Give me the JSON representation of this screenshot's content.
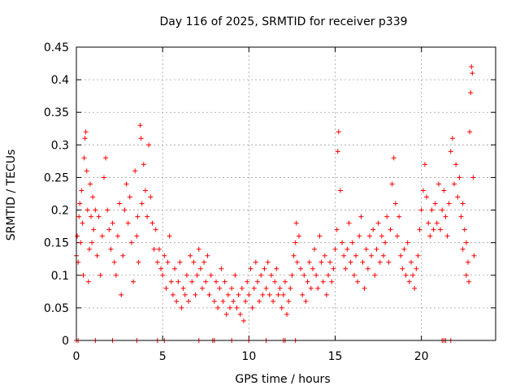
{
  "chart_data": {
    "type": "scatter",
    "title": "Day 116 of 2025, SRMTID for receiver p339",
    "xlabel": "GPS time / hours",
    "ylabel": "SRMTID / TECUs",
    "xlim": [
      0,
      24.3
    ],
    "ylim": [
      0,
      0.45
    ],
    "grid": true,
    "marker": "plus",
    "series_color": "#ff0000",
    "x_ticks": [
      {
        "value": 0,
        "label": "0"
      },
      {
        "value": 5,
        "label": "5"
      },
      {
        "value": 10,
        "label": "10"
      },
      {
        "value": 15,
        "label": "15"
      },
      {
        "value": 20,
        "label": "20"
      }
    ],
    "y_ticks": [
      {
        "value": 0,
        "label": "0"
      },
      {
        "value": 0.05,
        "label": "0.05"
      },
      {
        "value": 0.1,
        "label": "0.1"
      },
      {
        "value": 0.15,
        "label": "0.15"
      },
      {
        "value": 0.2,
        "label": "0.2"
      },
      {
        "value": 0.25,
        "label": "0.25"
      },
      {
        "value": 0.3,
        "label": "0.3"
      },
      {
        "value": 0.35,
        "label": "0.35"
      },
      {
        "value": 0.4,
        "label": "0.4"
      },
      {
        "value": 0.45,
        "label": "0.45"
      }
    ],
    "series": [
      {
        "name": "SRMTID",
        "points": [
          [
            0.0,
            0.13
          ],
          [
            0.05,
            0.16
          ],
          [
            0.1,
            0.12
          ],
          [
            0.15,
            0.19
          ],
          [
            0.2,
            0.21
          ],
          [
            0.25,
            0.15
          ],
          [
            0.3,
            0.23
          ],
          [
            0.35,
            0.18
          ],
          [
            0.4,
            0.1
          ],
          [
            0.45,
            0.28
          ],
          [
            0.5,
            0.31
          ],
          [
            0.55,
            0.32
          ],
          [
            0.6,
            0.26
          ],
          [
            0.65,
            0.2
          ],
          [
            0.7,
            0.09
          ],
          [
            0.75,
            0.14
          ],
          [
            0.8,
            0.24
          ],
          [
            0.85,
            0.19
          ],
          [
            0.9,
            0.15
          ],
          [
            0.95,
            0.22
          ],
          [
            1.0,
            0.17
          ],
          [
            1.1,
            0.2
          ],
          [
            1.2,
            0.13
          ],
          [
            1.3,
            0.19
          ],
          [
            1.4,
            0.1
          ],
          [
            1.5,
            0.16
          ],
          [
            1.6,
            0.25
          ],
          [
            1.7,
            0.28
          ],
          [
            1.8,
            0.2
          ],
          [
            1.9,
            0.17
          ],
          [
            2.0,
            0.14
          ],
          [
            2.1,
            0.18
          ],
          [
            2.2,
            0.12
          ],
          [
            2.3,
            0.1
          ],
          [
            2.4,
            0.16
          ],
          [
            2.5,
            0.21
          ],
          [
            2.6,
            0.07
          ],
          [
            2.7,
            0.13
          ],
          [
            2.8,
            0.2
          ],
          [
            2.9,
            0.24
          ],
          [
            3.0,
            0.18
          ],
          [
            3.1,
            0.22
          ],
          [
            3.2,
            0.15
          ],
          [
            3.3,
            0.09
          ],
          [
            3.4,
            0.26
          ],
          [
            3.5,
            0.16
          ],
          [
            3.55,
            0.19
          ],
          [
            3.6,
            0.12
          ],
          [
            3.7,
            0.33
          ],
          [
            3.75,
            0.31
          ],
          [
            3.8,
            0.21
          ],
          [
            3.9,
            0.27
          ],
          [
            4.0,
            0.23
          ],
          [
            4.1,
            0.19
          ],
          [
            4.2,
            0.3
          ],
          [
            4.3,
            0.22
          ],
          [
            4.4,
            0.18
          ],
          [
            4.5,
            0.14
          ],
          [
            4.6,
            0.17
          ],
          [
            4.7,
            0.12
          ],
          [
            4.8,
            0.14
          ],
          [
            4.9,
            0.11
          ],
          [
            5.0,
            0.1
          ],
          [
            5.1,
            0.13
          ],
          [
            5.2,
            0.08
          ],
          [
            5.3,
            0.12
          ],
          [
            5.4,
            0.16
          ],
          [
            5.5,
            0.09
          ],
          [
            5.6,
            0.07
          ],
          [
            5.7,
            0.11
          ],
          [
            5.8,
            0.06
          ],
          [
            5.9,
            0.09
          ],
          [
            6.0,
            0.12
          ],
          [
            6.1,
            0.05
          ],
          [
            6.2,
            0.08
          ],
          [
            6.3,
            0.07
          ],
          [
            6.4,
            0.1
          ],
          [
            6.5,
            0.06
          ],
          [
            6.6,
            0.13
          ],
          [
            6.7,
            0.09
          ],
          [
            6.8,
            0.12
          ],
          [
            6.9,
            0.07
          ],
          [
            7.0,
            0.1
          ],
          [
            7.1,
            0.14
          ],
          [
            7.2,
            0.11
          ],
          [
            7.3,
            0.08
          ],
          [
            7.4,
            0.12
          ],
          [
            7.5,
            0.09
          ],
          [
            7.6,
            0.13
          ],
          [
            7.7,
            0.07
          ],
          [
            7.8,
            0.1
          ],
          [
            8.0,
            0.06
          ],
          [
            8.1,
            0.09
          ],
          [
            8.2,
            0.05
          ],
          [
            8.3,
            0.08
          ],
          [
            8.4,
            0.11
          ],
          [
            8.5,
            0.06
          ],
          [
            8.6,
            0.09
          ],
          [
            8.7,
            0.04
          ],
          [
            8.8,
            0.07
          ],
          [
            8.9,
            0.05
          ],
          [
            9.0,
            0.08
          ],
          [
            9.1,
            0.06
          ],
          [
            9.2,
            0.1
          ],
          [
            9.3,
            0.05
          ],
          [
            9.4,
            0.07
          ],
          [
            9.5,
            0.04
          ],
          [
            9.6,
            0.08
          ],
          [
            9.7,
            0.03
          ],
          [
            9.8,
            0.06
          ],
          [
            9.9,
            0.09
          ],
          [
            10.0,
            0.07
          ],
          [
            10.1,
            0.11
          ],
          [
            10.2,
            0.05
          ],
          [
            10.3,
            0.08
          ],
          [
            10.4,
            0.12
          ],
          [
            10.5,
            0.09
          ],
          [
            10.6,
            0.06
          ],
          [
            10.7,
            0.1
          ],
          [
            10.8,
            0.07
          ],
          [
            10.9,
            0.11
          ],
          [
            11.0,
            0.08
          ],
          [
            11.1,
            0.12
          ],
          [
            11.2,
            0.07
          ],
          [
            11.3,
            0.1
          ],
          [
            11.4,
            0.06
          ],
          [
            11.5,
            0.09
          ],
          [
            11.6,
            0.11
          ],
          [
            11.7,
            0.07
          ],
          [
            11.8,
            0.08
          ],
          [
            11.9,
            0.05
          ],
          [
            12.0,
            0.07
          ],
          [
            12.1,
            0.09
          ],
          [
            12.2,
            0.04
          ],
          [
            12.3,
            0.06
          ],
          [
            12.4,
            0.08
          ],
          [
            12.5,
            0.1
          ],
          [
            12.6,
            0.13
          ],
          [
            12.7,
            0.15
          ],
          [
            12.75,
            0.18
          ],
          [
            12.8,
            0.12
          ],
          [
            12.9,
            0.16
          ],
          [
            13.0,
            0.11
          ],
          [
            13.1,
            0.07
          ],
          [
            13.2,
            0.1
          ],
          [
            13.3,
            0.06
          ],
          [
            13.4,
            0.09
          ],
          [
            13.5,
            0.12
          ],
          [
            13.6,
            0.08
          ],
          [
            13.7,
            0.11
          ],
          [
            13.8,
            0.14
          ],
          [
            13.9,
            0.1
          ],
          [
            14.0,
            0.08
          ],
          [
            14.1,
            0.16
          ],
          [
            14.2,
            0.12
          ],
          [
            14.3,
            0.09
          ],
          [
            14.4,
            0.13
          ],
          [
            14.5,
            0.07
          ],
          [
            14.6,
            0.1
          ],
          [
            14.7,
            0.12
          ],
          [
            14.8,
            0.09
          ],
          [
            14.9,
            0.11
          ],
          [
            15.0,
            0.14
          ],
          [
            15.1,
            0.17
          ],
          [
            15.15,
            0.29
          ],
          [
            15.2,
            0.32
          ],
          [
            15.3,
            0.23
          ],
          [
            15.4,
            0.15
          ],
          [
            15.5,
            0.13
          ],
          [
            15.6,
            0.11
          ],
          [
            15.7,
            0.14
          ],
          [
            15.8,
            0.18
          ],
          [
            15.9,
            0.12
          ],
          [
            16.0,
            0.15
          ],
          [
            16.1,
            0.1
          ],
          [
            16.2,
            0.13
          ],
          [
            16.3,
            0.09
          ],
          [
            16.4,
            0.16
          ],
          [
            16.5,
            0.19
          ],
          [
            16.6,
            0.12
          ],
          [
            16.7,
            0.08
          ],
          [
            16.8,
            0.14
          ],
          [
            16.9,
            0.11
          ],
          [
            17.0,
            0.16
          ],
          [
            17.1,
            0.13
          ],
          [
            17.2,
            0.17
          ],
          [
            17.3,
            0.1
          ],
          [
            17.4,
            0.14
          ],
          [
            17.5,
            0.18
          ],
          [
            17.6,
            0.12
          ],
          [
            17.7,
            0.16
          ],
          [
            17.8,
            0.13
          ],
          [
            17.9,
            0.15
          ],
          [
            18.0,
            0.19
          ],
          [
            18.1,
            0.12
          ],
          [
            18.2,
            0.17
          ],
          [
            18.3,
            0.24
          ],
          [
            18.4,
            0.28
          ],
          [
            18.5,
            0.21
          ],
          [
            18.6,
            0.16
          ],
          [
            18.7,
            0.19
          ],
          [
            18.8,
            0.13
          ],
          [
            18.9,
            0.11
          ],
          [
            19.0,
            0.14
          ],
          [
            19.1,
            0.1
          ],
          [
            19.2,
            0.15
          ],
          [
            19.3,
            0.09
          ],
          [
            19.4,
            0.12
          ],
          [
            19.5,
            0.1
          ],
          [
            19.6,
            0.08
          ],
          [
            19.7,
            0.11
          ],
          [
            19.8,
            0.13
          ],
          [
            19.9,
            0.17
          ],
          [
            20.0,
            0.2
          ],
          [
            20.1,
            0.23
          ],
          [
            20.2,
            0.27
          ],
          [
            20.3,
            0.22
          ],
          [
            20.4,
            0.18
          ],
          [
            20.5,
            0.16
          ],
          [
            20.6,
            0.2
          ],
          [
            20.7,
            0.17
          ],
          [
            20.8,
            0.21
          ],
          [
            20.9,
            0.18
          ],
          [
            21.0,
            0.24
          ],
          [
            21.1,
            0.17
          ],
          [
            21.2,
            0.2
          ],
          [
            21.3,
            0.23
          ],
          [
            21.4,
            0.19
          ],
          [
            21.5,
            0.16
          ],
          [
            21.6,
            0.21
          ],
          [
            21.7,
            0.29
          ],
          [
            21.8,
            0.31
          ],
          [
            21.9,
            0.24
          ],
          [
            22.0,
            0.27
          ],
          [
            22.1,
            0.22
          ],
          [
            22.2,
            0.25
          ],
          [
            22.3,
            0.19
          ],
          [
            22.4,
            0.21
          ],
          [
            22.5,
            0.17
          ],
          [
            22.6,
            0.15
          ],
          [
            22.7,
            0.12
          ],
          [
            22.75,
            0.09
          ],
          [
            22.8,
            0.32
          ],
          [
            22.85,
            0.38
          ],
          [
            22.9,
            0.42
          ],
          [
            22.95,
            0.41
          ],
          [
            23.0,
            0.25
          ],
          [
            23.05,
            0.13
          ],
          [
            22.6,
            0.1
          ],
          [
            22.4,
            0.14
          ],
          [
            0.0,
            0.0
          ],
          [
            0.1,
            0.0
          ],
          [
            1.1,
            0.0
          ],
          [
            2.1,
            0.0
          ],
          [
            3.5,
            0.0
          ],
          [
            4.7,
            0.0
          ],
          [
            5.1,
            0.0
          ],
          [
            7.1,
            0.0
          ],
          [
            7.9,
            0.0
          ],
          [
            8.0,
            0.0
          ],
          [
            9.0,
            0.0
          ],
          [
            10.0,
            0.0
          ],
          [
            11.0,
            0.0
          ],
          [
            12.0,
            0.0
          ],
          [
            12.1,
            0.0
          ],
          [
            12.7,
            0.0
          ],
          [
            21.2,
            0.0
          ],
          [
            21.3,
            0.0
          ],
          [
            21.4,
            0.0
          ],
          [
            21.7,
            0.0
          ]
        ]
      }
    ]
  }
}
